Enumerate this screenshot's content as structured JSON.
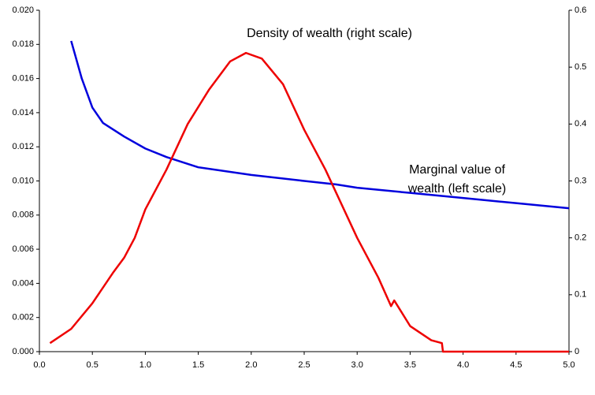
{
  "chart_data": {
    "type": "line",
    "annotations": [
      "Density of wealth (right scale)",
      "Marginal value of",
      "wealth (left scale)"
    ],
    "xlim": [
      0,
      5
    ],
    "xticks": [
      {
        "value": 0,
        "label": "0.0"
      },
      {
        "value": 0.5,
        "label": "0.5"
      },
      {
        "value": 1,
        "label": "1.0"
      },
      {
        "value": 1.5,
        "label": "1.5"
      },
      {
        "value": 2,
        "label": "2.0"
      },
      {
        "value": 2.5,
        "label": "2.5"
      },
      {
        "value": 3,
        "label": "3.0"
      },
      {
        "value": 3.5,
        "label": "3.5"
      },
      {
        "value": 4,
        "label": "4.0"
      },
      {
        "value": 4.5,
        "label": "4.5"
      },
      {
        "value": 5,
        "label": "5.0"
      }
    ],
    "ylim": [
      0,
      0.02
    ],
    "yticks": [
      {
        "value": 0,
        "label": "0.000"
      },
      {
        "value": 0.002,
        "label": "0.002"
      },
      {
        "value": 0.004,
        "label": "0.004"
      },
      {
        "value": 0.006,
        "label": "0.006"
      },
      {
        "value": 0.008,
        "label": "0.008"
      },
      {
        "value": 0.01,
        "label": "0.010"
      },
      {
        "value": 0.012,
        "label": "0.012"
      },
      {
        "value": 0.014,
        "label": "0.014"
      },
      {
        "value": 0.016,
        "label": "0.016"
      },
      {
        "value": 0.018,
        "label": "0.018"
      },
      {
        "value": 0.02,
        "label": "0.020"
      }
    ],
    "y2lim": [
      0,
      0.6
    ],
    "y2ticks": [
      0,
      0.1,
      0.2,
      0.3,
      0.4,
      0.5,
      0.6
    ],
    "grid": false,
    "series": [
      {
        "color": "#0000dd",
        "axis": "y",
        "x": [
          0.3,
          0.4,
          0.5,
          0.6,
          0.7,
          0.8,
          1.0,
          1.2,
          1.5,
          2.0,
          2.5,
          2.8,
          3.0,
          3.5,
          4.0,
          4.5,
          5.0
        ],
        "values": [
          0.0182,
          0.016,
          0.0143,
          0.0134,
          0.013,
          0.0126,
          0.0119,
          0.0114,
          0.0108,
          0.01035,
          0.01,
          0.0098,
          0.0096,
          0.0093,
          0.009,
          0.0087,
          0.0084
        ]
      },
      {
        "color": "#ee0000",
        "axis": "y2",
        "x": [
          0.1,
          0.3,
          0.5,
          0.7,
          0.8,
          0.9,
          1.0,
          1.2,
          1.4,
          1.6,
          1.8,
          1.95,
          2.1,
          2.3,
          2.5,
          2.7,
          2.8,
          3.0,
          3.2,
          3.32,
          3.35,
          3.5,
          3.7,
          3.8,
          3.81,
          5.0
        ],
        "values": [
          0.015,
          0.04,
          0.085,
          0.14,
          0.165,
          0.2,
          0.25,
          0.32,
          0.4,
          0.46,
          0.51,
          0.525,
          0.515,
          0.47,
          0.39,
          0.32,
          0.28,
          0.2,
          0.13,
          0.08,
          0.09,
          0.045,
          0.02,
          0.015,
          0,
          0
        ]
      }
    ]
  }
}
